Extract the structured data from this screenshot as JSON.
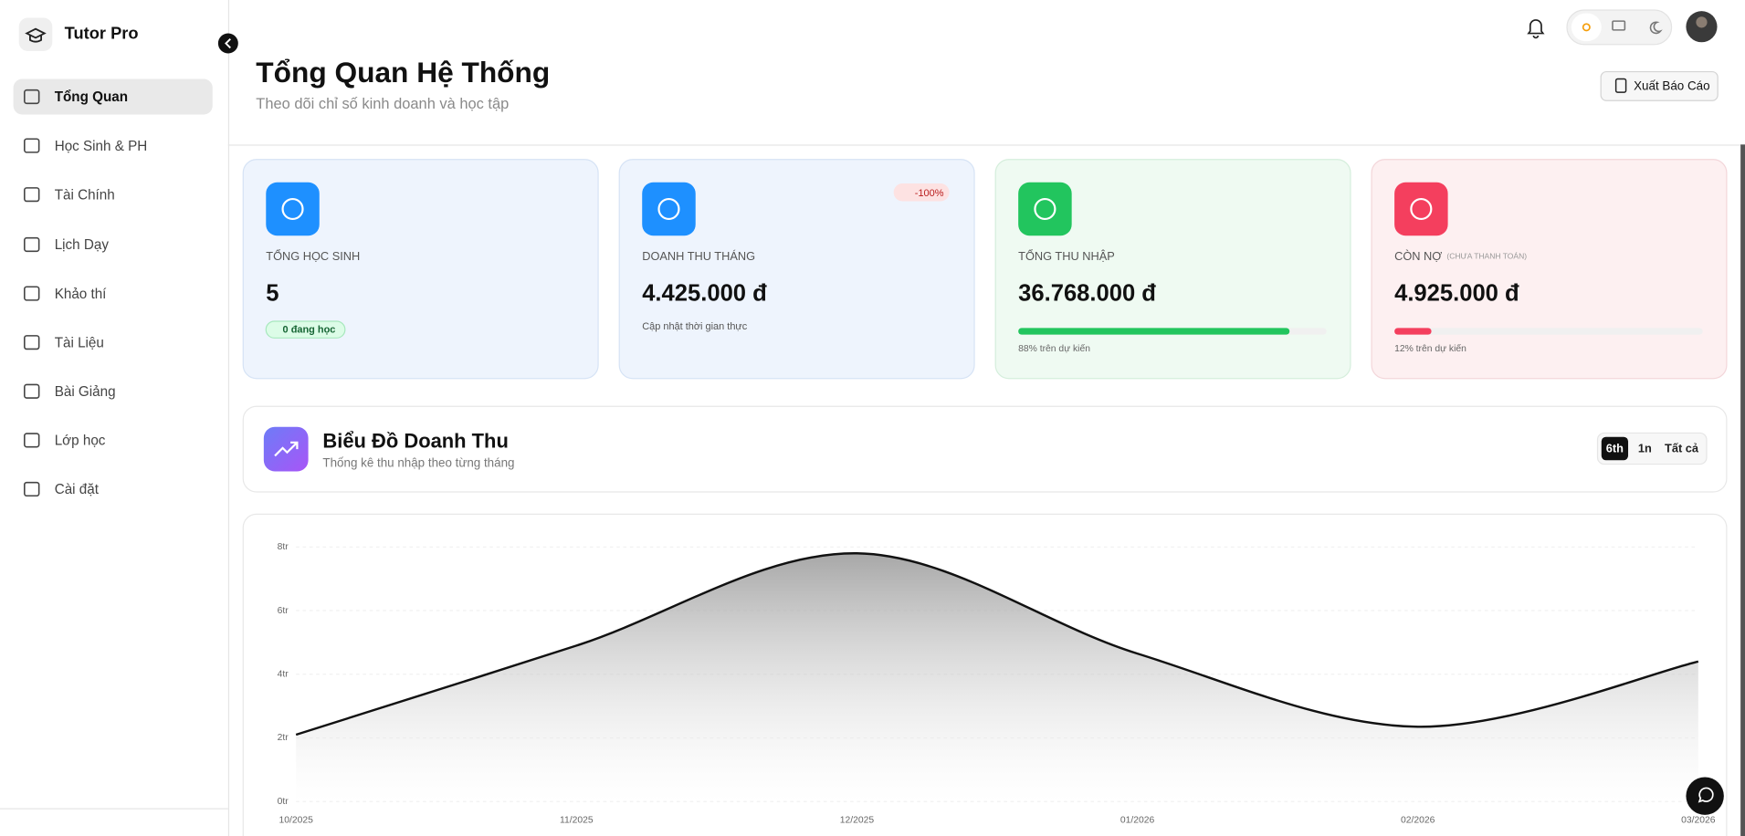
{
  "sidebar": {
    "brand": "Tutor Pro",
    "nav": [
      "Tổng Quan",
      "Học Sinh & PH",
      "Tài Chính",
      "Lịch Dạy",
      "Khảo thí",
      "Tài Liệu",
      "Bài Giảng",
      "Lớp học",
      "Cài đặt"
    ]
  },
  "header": {
    "title": "Tổng Quan Hệ Thống",
    "subtitle": "Theo dõi chỉ số kinh doanh và học tập",
    "export": "Xuất Báo Cáo"
  },
  "stats": [
    {
      "label": "TỔNG HỌC SINH",
      "value": "5",
      "badge": "0 đang học"
    },
    {
      "label": "DOANH THU THÁNG",
      "value": "4.425.000 đ",
      "badge": "-100%",
      "note": "Cập nhật thời gian thực"
    },
    {
      "label": "TỔNG THU NHẬP",
      "value": "36.768.000 đ",
      "progress": 88,
      "note": "88% trên dự kiến"
    },
    {
      "label": "CÒN NỢ",
      "sublabel": "(CHƯA THANH TOÁN)",
      "value": "4.925.000 đ",
      "progress": 12,
      "note": "12% trên dự kiến"
    }
  ],
  "revenue": {
    "title": "Biểu Đồ Doanh Thu",
    "subtitle": "Thống kê thu nhập theo từng tháng",
    "ranges": [
      "6th",
      "1n",
      "Tất cả"
    ]
  },
  "chart_data": {
    "type": "area",
    "categories": [
      "10/2025",
      "11/2025",
      "12/2025",
      "01/2026",
      "02/2026",
      "03/2026"
    ],
    "values": [
      2.1,
      4.9,
      7.8,
      4.65,
      2.35,
      4.4
    ],
    "color": "#111111",
    "ylim": [
      0,
      8
    ],
    "yticks": [
      {
        "value": 0,
        "label": "0tr"
      },
      {
        "value": 2,
        "label": "2tr"
      },
      {
        "value": 4,
        "label": "4tr"
      },
      {
        "value": 6,
        "label": "6tr"
      },
      {
        "value": 8,
        "label": "8tr"
      }
    ],
    "grid": true
  }
}
